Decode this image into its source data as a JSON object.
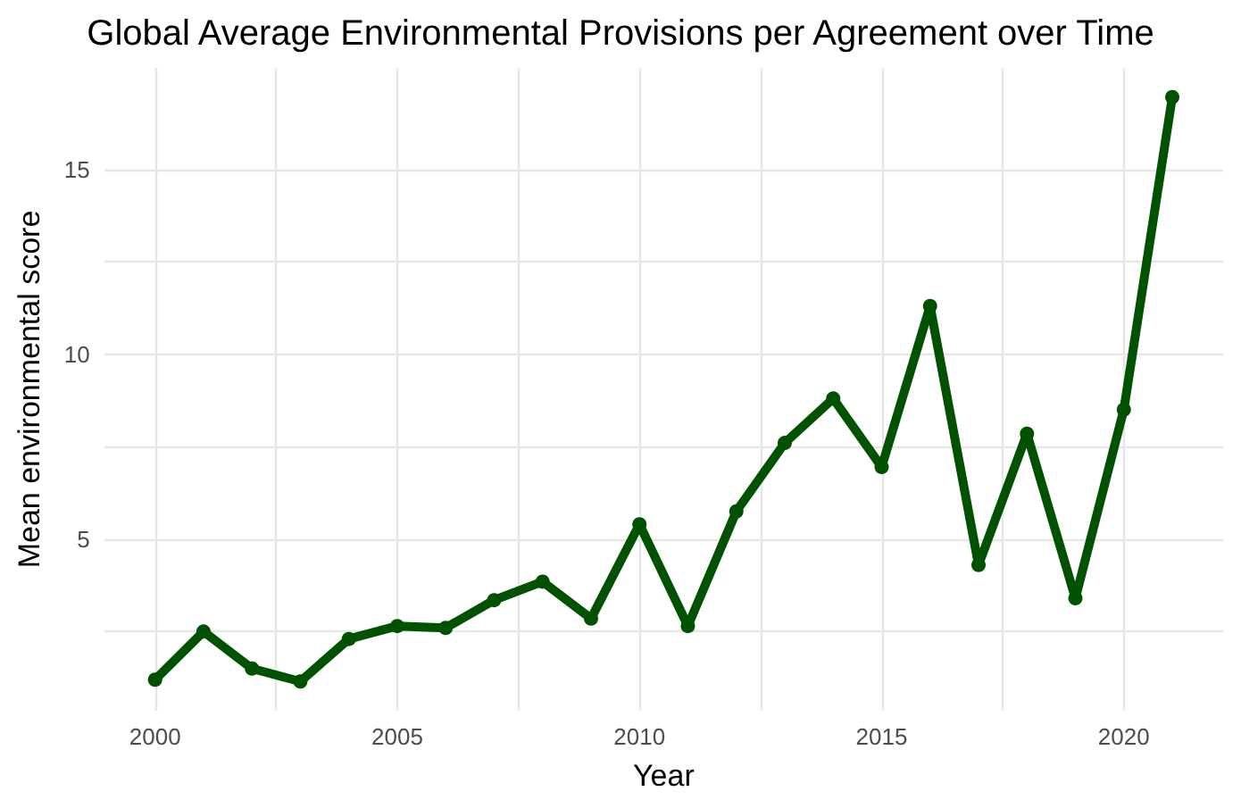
{
  "chart_data": {
    "type": "line",
    "title": "Global Average Environmental Provisions per Agreement over Time",
    "xlabel": "Year",
    "ylabel": "Mean environmental score",
    "x": [
      2000,
      2001,
      2002,
      2003,
      2004,
      2005,
      2006,
      2007,
      2008,
      2009,
      2010,
      2011,
      2012,
      2013,
      2014,
      2015,
      2016,
      2017,
      2018,
      2019,
      2020,
      2021
    ],
    "series": [
      {
        "color": "#005200",
        "values": [
          1.2,
          2.5,
          1.5,
          1.15,
          2.3,
          2.65,
          2.6,
          3.35,
          3.85,
          2.85,
          5.4,
          2.65,
          5.75,
          7.6,
          8.8,
          6.95,
          11.3,
          4.3,
          7.85,
          3.4,
          8.5,
          16.95
        ]
      }
    ],
    "xlim": [
      1998.95,
      2022.05
    ],
    "ylim": [
      0.36,
      17.74
    ],
    "xticks": [
      2000,
      {
        "value": 2002.5,
        "label": null
      },
      2005,
      {
        "value": 2007.5,
        "label": null
      },
      2010,
      {
        "value": 2012.5,
        "label": null
      },
      2015,
      {
        "value": 2017.5,
        "label": null
      },
      2020
    ],
    "yticks": [
      {
        "value": 2.5,
        "label": null
      },
      5,
      {
        "value": 7.5,
        "label": null
      },
      10,
      {
        "value": 12.5,
        "label": null
      },
      15
    ],
    "grid": true,
    "marker": "circle",
    "line_style": "solid"
  }
}
